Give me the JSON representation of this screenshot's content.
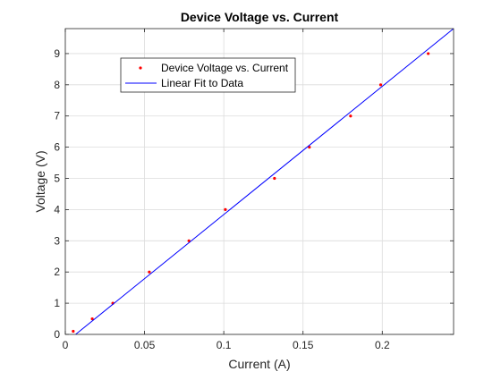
{
  "chart_data": {
    "type": "scatter",
    "title": "Device Voltage vs. Current",
    "xlabel": "Current (A)",
    "ylabel": "Voltage (V)",
    "xlim": [
      0,
      0.245
    ],
    "ylim": [
      0,
      9.8
    ],
    "xticks": [
      0,
      0.05,
      0.1,
      0.15,
      0.2
    ],
    "xtick_labels": [
      "0",
      "0.05",
      "0.1",
      "0.15",
      "0.2"
    ],
    "yticks": [
      0,
      1,
      2,
      3,
      4,
      5,
      6,
      7,
      8,
      9
    ],
    "ytick_labels": [
      "0",
      "1",
      "2",
      "3",
      "4",
      "5",
      "6",
      "7",
      "8",
      "9"
    ],
    "grid": true,
    "legend_position": "upper-left",
    "series": [
      {
        "name": "Device Voltage vs. Current",
        "kind": "points",
        "color": "#ff0000",
        "x": [
          0.005,
          0.017,
          0.03,
          0.053,
          0.078,
          0.101,
          0.132,
          0.154,
          0.18,
          0.199,
          0.229
        ],
        "y": [
          0.1,
          0.5,
          1.0,
          2.0,
          3.0,
          4.0,
          5.0,
          6.0,
          7.0,
          8.0,
          9.0
        ]
      },
      {
        "name": "Linear Fit to Data",
        "kind": "line",
        "color": "#0000ff",
        "x": [
          0.0065,
          0.245
        ],
        "y": [
          0.0,
          9.8
        ]
      }
    ]
  }
}
